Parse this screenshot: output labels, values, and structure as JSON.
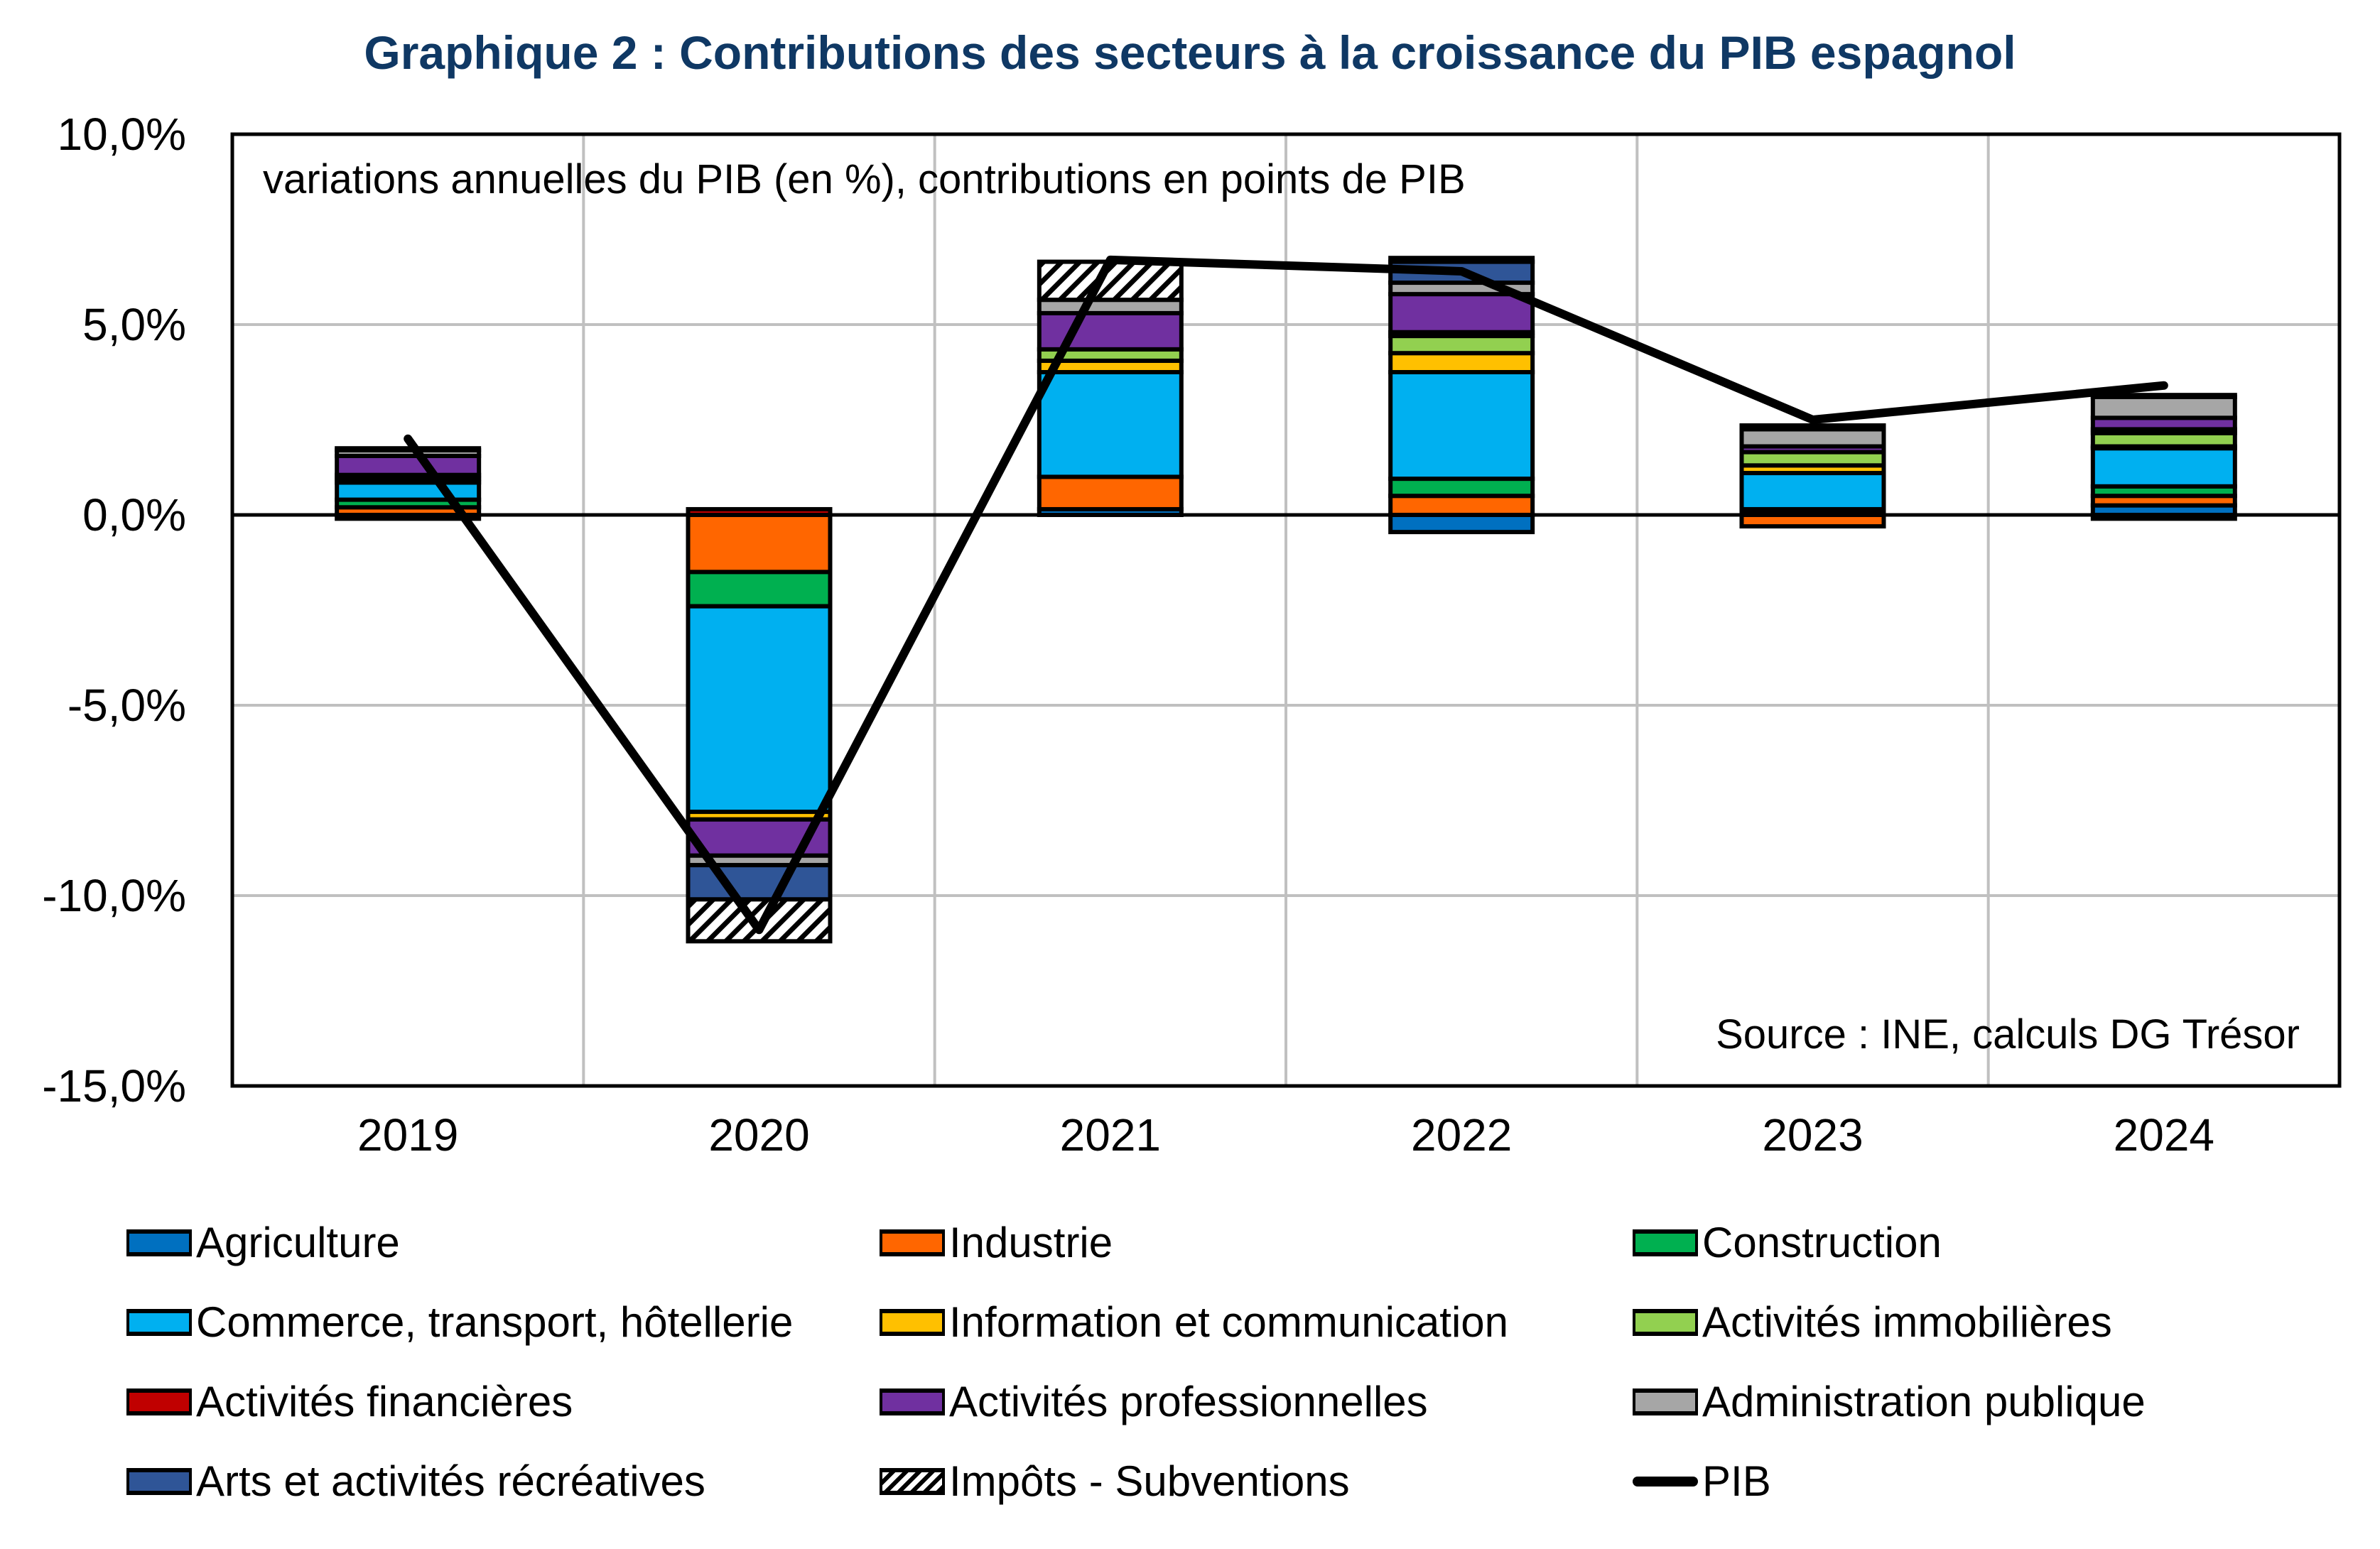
{
  "title": "Graphique 2 : Contributions des secteurs à la croissance du PIB espagnol",
  "subtitle": "variations annuelles du PIB (en %), contributions en points de PIB",
  "source": "Source : INE, calculs DG Trésor",
  "chart_data": {
    "type": "bar",
    "stacked": true,
    "title": "Graphique 2 : Contributions des secteurs à la croissance du PIB espagnol",
    "subtitle": "variations annuelles du PIB (en %), contributions en points de PIB",
    "xlabel": "",
    "ylabel": "",
    "ylim": [
      -15,
      10
    ],
    "yticks": [
      "10,0%",
      "5,0%",
      "0,0%",
      "-5,0%",
      "-10,0%",
      "-15,0%"
    ],
    "ytick_values": [
      10,
      5,
      0,
      -5,
      -10,
      -15
    ],
    "grid": true,
    "legend_position": "bottom",
    "categories": [
      "2019",
      "2020",
      "2021",
      "2022",
      "2023",
      "2024"
    ],
    "series": [
      {
        "name": "Agriculture",
        "color": "#0070c0",
        "values": [
          0.0,
          0.0,
          0.15,
          -0.45,
          0.1,
          0.25
        ]
      },
      {
        "name": "Industrie",
        "color": "#ff6600",
        "values": [
          0.2,
          -1.5,
          0.85,
          0.5,
          -0.3,
          0.25
        ]
      },
      {
        "name": "Construction",
        "color": "#00b050",
        "values": [
          0.2,
          -0.9,
          0.0,
          0.45,
          0.05,
          0.25
        ]
      },
      {
        "name": "Commerce, transport, hôtellerie",
        "color": "#00b0f0",
        "values": [
          0.45,
          -5.4,
          2.75,
          2.8,
          0.95,
          1.0
        ]
      },
      {
        "name": "Information et communication",
        "color": "#ffc000",
        "values": [
          0.1,
          -0.2,
          0.3,
          0.5,
          0.2,
          0.05
        ]
      },
      {
        "name": "Activités immobilières",
        "color": "#92d050",
        "values": [
          0.1,
          0.0,
          0.3,
          0.45,
          0.35,
          0.35
        ]
      },
      {
        "name": "Activités financières",
        "color": "#c00000",
        "values": [
          -0.1,
          0.15,
          0.0,
          0.1,
          0.0,
          0.1
        ]
      },
      {
        "name": "Activités professionnelles",
        "color": "#7030a0",
        "values": [
          0.5,
          -0.95,
          0.95,
          1.0,
          0.15,
          0.3
        ]
      },
      {
        "name": "Administration publique",
        "color": "#a6a6a6",
        "values": [
          0.15,
          -0.25,
          0.35,
          0.3,
          0.45,
          0.55
        ]
      },
      {
        "name": "Arts et activités récréatives",
        "color": "#2f5597",
        "values": [
          0.05,
          -0.9,
          0.0,
          0.55,
          0.1,
          0.05
        ]
      },
      {
        "name": "Impôts - Subventions",
        "color": "hatch",
        "values": [
          0.0,
          -1.1,
          1.0,
          0.1,
          0.0,
          -0.1
        ]
      }
    ],
    "line": {
      "name": "PIB",
      "color": "#000000",
      "values": [
        2.0,
        -10.9,
        6.7,
        6.4,
        2.5,
        3.4
      ]
    }
  },
  "legend": [
    {
      "label": "Agriculture",
      "color": "#0070c0",
      "kind": "box"
    },
    {
      "label": "Industrie",
      "color": "#ff6600",
      "kind": "box"
    },
    {
      "label": "Construction",
      "color": "#00b050",
      "kind": "box"
    },
    {
      "label": "Commerce, transport, hôtellerie",
      "color": "#00b0f0",
      "kind": "box"
    },
    {
      "label": "Information et communication",
      "color": "#ffc000",
      "kind": "box"
    },
    {
      "label": "Activités immobilières",
      "color": "#92d050",
      "kind": "box"
    },
    {
      "label": "Activités financières",
      "color": "#c00000",
      "kind": "box"
    },
    {
      "label": "Activités professionnelles",
      "color": "#7030a0",
      "kind": "box"
    },
    {
      "label": "Administration publique",
      "color": "#a6a6a6",
      "kind": "box"
    },
    {
      "label": "Arts et activités récréatives",
      "color": "#2f5597",
      "kind": "box"
    },
    {
      "label": "Impôts - Subventions",
      "color": "hatch",
      "kind": "hatch"
    },
    {
      "label": "PIB",
      "color": "#000000",
      "kind": "line"
    }
  ]
}
